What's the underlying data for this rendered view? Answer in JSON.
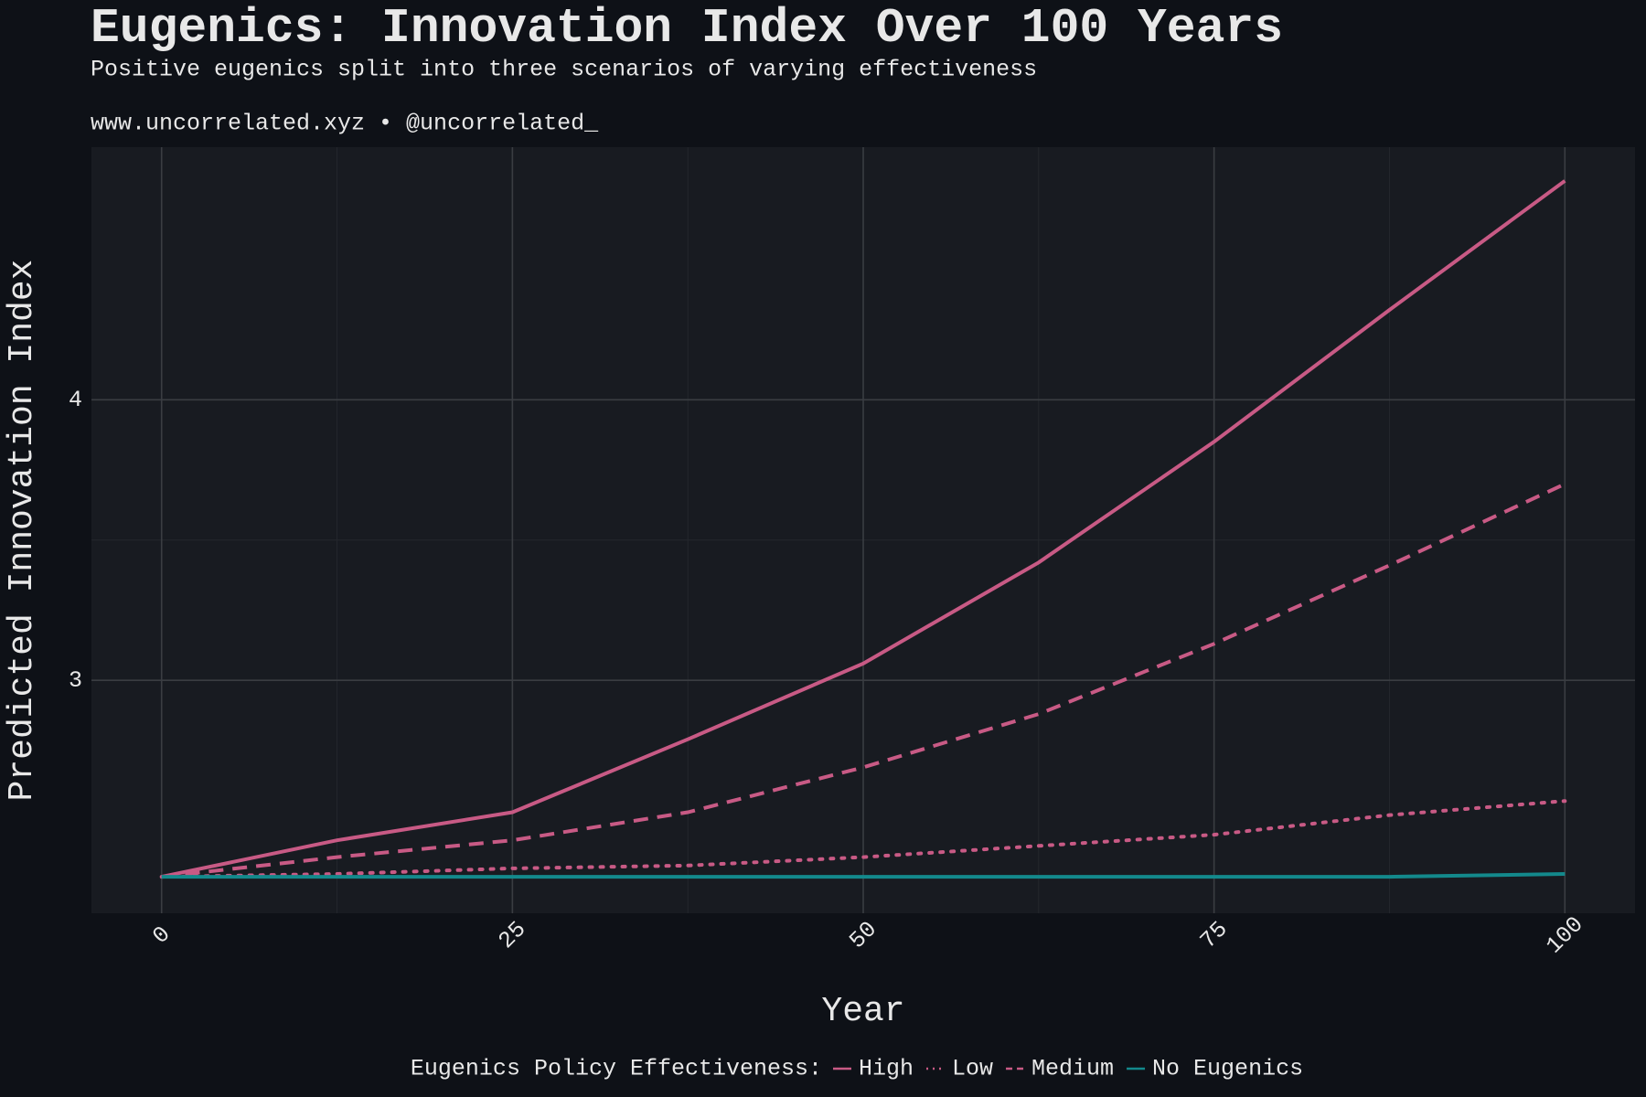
{
  "chart_data": {
    "type": "line",
    "title": "Eugenics: Innovation Index Over 100 Years",
    "subtitle": "Positive eugenics split into three scenarios of varying effectiveness",
    "caption": "www.uncorrelated.xyz • @uncorrelated_",
    "x_label": "Year",
    "y_label": "Predicted Innovation Index",
    "legend_title": "Eugenics Policy Effectiveness:",
    "legend_position": "bottom",
    "grid": true,
    "x": [
      0,
      12.5,
      25,
      37.5,
      50,
      62.5,
      75,
      87.5,
      100
    ],
    "series": [
      {
        "name": "High",
        "color": "#c85a85",
        "linestyle": "solid",
        "values": [
          2.3,
          2.43,
          2.53,
          2.79,
          3.06,
          3.42,
          3.85,
          4.32,
          4.78
        ]
      },
      {
        "name": "Low",
        "color": "#c85a85",
        "linestyle": "dotted",
        "values": [
          2.3,
          2.31,
          2.33,
          2.34,
          2.37,
          2.41,
          2.45,
          2.52,
          2.57
        ]
      },
      {
        "name": "Medium",
        "color": "#c85a85",
        "linestyle": "dashed",
        "values": [
          2.3,
          2.37,
          2.43,
          2.53,
          2.69,
          2.88,
          3.13,
          3.41,
          3.7
        ]
      },
      {
        "name": "No Eugenics",
        "color": "#13898c",
        "linestyle": "solid",
        "values": [
          2.3,
          2.3,
          2.3,
          2.3,
          2.3,
          2.3,
          2.3,
          2.3,
          2.31
        ]
      }
    ],
    "xlim": [
      -5,
      105
    ],
    "ylim": [
      2.17,
      4.9
    ],
    "xticks": [
      0,
      25,
      50,
      75,
      100
    ],
    "yticks": [
      3,
      4
    ]
  }
}
